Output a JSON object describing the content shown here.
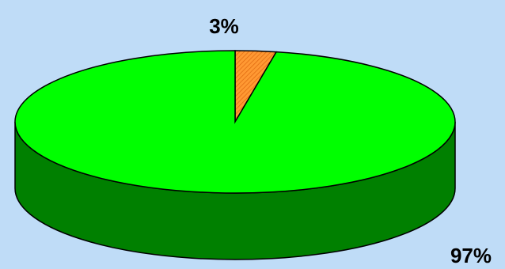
{
  "chart_data": {
    "type": "pie",
    "style": "3d",
    "slices": [
      {
        "label": "3%",
        "value": 3,
        "color": "#ff9933",
        "side_color": "#cc6600"
      },
      {
        "label": "97%",
        "value": 97,
        "color": "#00ff00",
        "side_color": "#008000"
      }
    ],
    "data_labels": [
      "3%",
      "97%"
    ],
    "legend": "none"
  },
  "colors": {
    "background": "#bfdcf7",
    "outline": "#000000"
  }
}
